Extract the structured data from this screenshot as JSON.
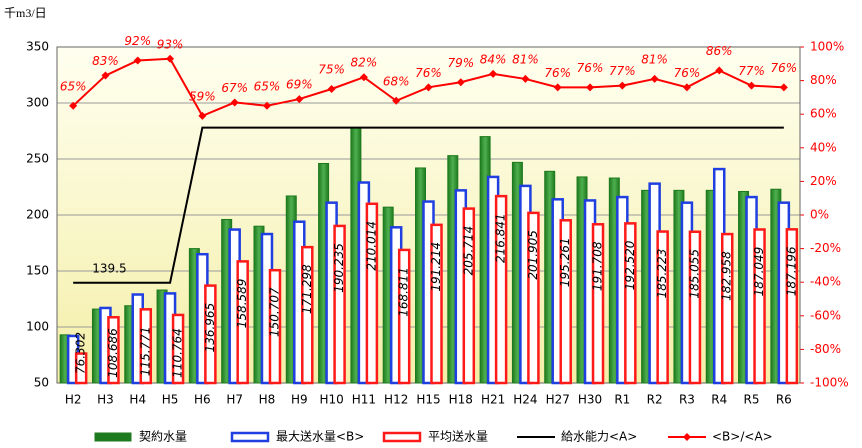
{
  "chart_data": {
    "type": "bar",
    "y_label": "千m3/日",
    "categories": [
      "H2",
      "H3",
      "H4",
      "H5",
      "H6",
      "H7",
      "H8",
      "H9",
      "H10",
      "H11",
      "H12",
      "H15",
      "H18",
      "H21",
      "H24",
      "H27",
      "H30",
      "R1",
      "R2",
      "R3",
      "R4",
      "R5",
      "R6"
    ],
    "series": [
      {
        "name": "契約水量",
        "type": "bar",
        "color": "#1e7a1e",
        "values": [
          93,
          116,
          119,
          133,
          170,
          196,
          190,
          217,
          246,
          278,
          207,
          242,
          253,
          270,
          247,
          239,
          234,
          233,
          222,
          222,
          222,
          221,
          223
        ]
      },
      {
        "name": "最大送水量<B>",
        "type": "bar",
        "color": "#1f3fe0",
        "values": [
          92,
          117,
          129,
          130,
          165,
          187,
          183,
          194,
          211,
          229,
          189,
          212,
          222,
          234,
          226,
          214,
          213,
          216,
          228,
          211,
          241,
          216,
          211
        ]
      },
      {
        "name": "平均送水量",
        "type": "bar",
        "color": "#ff1a1a",
        "values": [
          76.302,
          108.686,
          115.771,
          110.764,
          136.965,
          158.589,
          150.707,
          171.298,
          190.235,
          210.014,
          168.811,
          191.214,
          205.714,
          216.841,
          201.905,
          195.261,
          191.708,
          192.52,
          185.223,
          185.055,
          182.958,
          187.049,
          187.196
        ],
        "value_labels": [
          "76.302",
          "108.686",
          "115.771",
          "110.764",
          "136.965",
          "158.589",
          "150.707",
          "171.298",
          "190.235",
          "210.014",
          "168.811",
          "191.214",
          "205.714",
          "216.841",
          "201.905",
          "195.261",
          "191.708",
          "192.520",
          "185.223",
          "185.055",
          "182.958",
          "187.049",
          "187.196"
        ]
      },
      {
        "name": "給水能力<A>",
        "type": "line",
        "color": "#000000",
        "values": [
          139.5,
          139.5,
          139.5,
          139.5,
          278,
          278,
          278,
          278,
          278,
          278,
          278,
          278,
          278,
          278,
          278,
          278,
          278,
          278,
          278,
          278,
          278,
          278,
          278
        ]
      },
      {
        "name": "<B>/<A>",
        "type": "line",
        "color": "#ff0000",
        "axis": "y2",
        "values": [
          65,
          83,
          92,
          93,
          59,
          67,
          65,
          69,
          75,
          82,
          68,
          76,
          79,
          84,
          81,
          76,
          76,
          77,
          81,
          76,
          86,
          77,
          76
        ],
        "value_labels": [
          "65%",
          "83%",
          "92%",
          "93%",
          "59%",
          "67%",
          "65%",
          "69%",
          "75%",
          "82%",
          "68%",
          "76%",
          "79%",
          "84%",
          "81%",
          "76%",
          "76%",
          "77%",
          "81%",
          "76%",
          "86%",
          "77%",
          "76%"
        ]
      }
    ],
    "ylim": [
      50,
      350
    ],
    "yticks": [
      50,
      100,
      150,
      200,
      250,
      300,
      350
    ],
    "y2lim": [
      -100,
      100
    ],
    "y2ticks": [
      {
        "value": -100,
        "label": "-100%"
      },
      {
        "value": -80,
        "label": "-80%"
      },
      {
        "value": -60,
        "label": "-60%"
      },
      {
        "value": -40,
        "label": "-40%"
      },
      {
        "value": -20,
        "label": "-20%"
      },
      {
        "value": 0,
        "label": "0%"
      },
      {
        "value": 20,
        "label": "20%"
      },
      {
        "value": 40,
        "label": "40%"
      },
      {
        "value": 60,
        "label": "60%"
      },
      {
        "value": 80,
        "label": "80%"
      },
      {
        "value": 100,
        "label": "100%"
      }
    ],
    "grid": true
  }
}
